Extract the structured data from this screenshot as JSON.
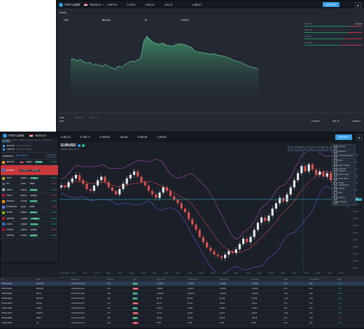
{
  "app": {
    "name": "FXB Capital",
    "account_id": "78234212"
  },
  "back_window": {
    "header_stats": [
      {
        "label": "",
        "value": "4 847.61"
      },
      {
        "label": "",
        "value": "1 013.3"
      },
      {
        "label": "",
        "value": "4 813.47"
      },
      {
        "label": "",
        "value": "244.13"
      },
      {
        "label": "",
        "value": ""
      },
      {
        "label": "",
        "value": "1 883.67"
      }
    ],
    "deposit_label": "DEPOSIT",
    "panel_title": "Equity",
    "summary": [
      {
        "label": "",
        "value": "15%"
      },
      {
        "label": "",
        "value": "$619.86"
      },
      {
        "label": "",
        "value": "75"
      },
      {
        "label": "",
        "value": "76.09%"
      }
    ],
    "side_items": [
      {
        "label": "EURUSD",
        "value": "1,341.23"
      },
      {
        "label": "GBPUSD",
        "value": "-"
      },
      {
        "label": "USDJPY",
        "value": "-"
      },
      {
        "label": "AUDUSD",
        "value": "-"
      }
    ],
    "chart_data": {
      "type": "area",
      "title": "Equity",
      "xlabel": "",
      "ylabel": "",
      "y": [
        60,
        62,
        58,
        61,
        57,
        55,
        56,
        52,
        54,
        51,
        50,
        53,
        49,
        47,
        45,
        50,
        48,
        52,
        55,
        58,
        57,
        60,
        62,
        90,
        98,
        92,
        88,
        86,
        85,
        87,
        84,
        83,
        82,
        84,
        86,
        85,
        84,
        82,
        80,
        74,
        73,
        72,
        71,
        70,
        69,
        70,
        68,
        67,
        66,
        64,
        63,
        60,
        58,
        57,
        55,
        52,
        50,
        48,
        47,
        45
      ],
      "ylim": [
        0,
        110
      ],
      "grid": true
    },
    "footer": {
      "rows": [
        {
          "label": "2024",
          "values": [
            "5,637.24",
            "5,637.24"
          ]
        },
        {
          "label": "2023",
          "values": [
            "",
            ""
          ]
        }
      ],
      "right_values": [
        "+1,281.50",
        "+881.79",
        "+1,883.57"
      ]
    }
  },
  "main_window": {
    "header_stats": [
      {
        "label": "",
        "value": "6 461.21"
      },
      {
        "label": "",
        "value": "6 783.77"
      },
      {
        "label": "",
        "value": "6 408.62"
      },
      {
        "label": "",
        "value": "244.48"
      },
      {
        "label": "",
        "value": "3 048.48"
      },
      {
        "label": "",
        "value": "1 355.81"
      }
    ],
    "deposit_label": "DEPOSIT",
    "symbol": "EURUSD",
    "price_tag": "1.07715",
    "indicator_label": "Bollinger Bands (20, 2)",
    "x_ticks": [
      "14 Aug 2024",
      "15:00",
      "16:00",
      "17:00",
      "18:00",
      "19:00",
      "20:00",
      "21:00",
      "22:00",
      "23:00",
      "00:00",
      "01:00",
      "02:00",
      "03:00",
      "04:00",
      "05:00",
      "06:00",
      "07:00",
      "08:00",
      "09:00",
      "10:00",
      "11:00",
      "12:00",
      "13:00",
      "14:00"
    ],
    "y_ticks": [
      "1.10200",
      "1.09800",
      "1.09400",
      "1.09000",
      "1.08600",
      "1.08200",
      "1.07800",
      "1.07400",
      "1.07000",
      "1.06600",
      "1.06200",
      "1.05800",
      "1.05400",
      "1.05000",
      "1.04600",
      "1.04200",
      "1.03800"
    ],
    "chart_data": {
      "type": "candlestick",
      "title": "EURUSD",
      "xlabel": "",
      "ylabel": "",
      "close": [
        1.085,
        1.084,
        1.087,
        1.089,
        1.091,
        1.088,
        1.086,
        1.083,
        1.082,
        1.085,
        1.088,
        1.09,
        1.087,
        1.084,
        1.082,
        1.08,
        1.083,
        1.086,
        1.089,
        1.091,
        1.093,
        1.09,
        1.087,
        1.085,
        1.082,
        1.08,
        1.078,
        1.081,
        1.084,
        1.082,
        1.079,
        1.077,
        1.075,
        1.072,
        1.07,
        1.066,
        1.063,
        1.06,
        1.056,
        1.053,
        1.05,
        1.048,
        1.046,
        1.045,
        1.044,
        1.046,
        1.048,
        1.047,
        1.049,
        1.052,
        1.055,
        1.053,
        1.056,
        1.06,
        1.064,
        1.067,
        1.065,
        1.068,
        1.072,
        1.075,
        1.078,
        1.076,
        1.08,
        1.084,
        1.088,
        1.092,
        1.096,
        1.093,
        1.097,
        1.094,
        1.091,
        1.093,
        1.09,
        1.092,
        1.088,
        1.086,
        1.083,
        1.08,
        1.082,
        1.078
      ],
      "ylim": [
        1.036,
        1.104
      ],
      "crosshair_price": "1.07715"
    },
    "menu_items": [
      "Symbols",
      "Indicators",
      "Technical analysis",
      "Draw",
      "Alert manager",
      "Economic calendar",
      "Market watch",
      "Trade history",
      "Money management",
      "Cashier",
      "Help",
      "Settings",
      "Language"
    ]
  },
  "front_window": {
    "tabs": [
      "EXCHANGE",
      "CRYPTO",
      "TRADING",
      "STOCKS",
      "INDICES",
      "COMMODITIES"
    ],
    "accounts": [
      {
        "id": "EURUSD",
        "desc": "Euro vs US Dollar"
      },
      {
        "id": "GBPUSD",
        "desc": "Pound vs US Dollar"
      }
    ],
    "panel_title": "MARKETS",
    "filter_label": "ALL SYMBOLS",
    "search_placeholder": "Search",
    "assets": [
      {
        "name": "BITCOIN",
        "tag": "-5%",
        "bid": "59,201",
        "ask": "59,234",
        "chg": "+0.54%",
        "dir": "up",
        "color": "#f7931a"
      },
      {
        "name": "EURUSD",
        "tag": "",
        "bid": "1.07703",
        "ask": "1.07715",
        "chg": "-0.32%",
        "dir": "down",
        "color": "#2f7be0"
      },
      {
        "name": "GOLD",
        "tag": "",
        "bid": "2,381.4",
        "ask": "2,382.1",
        "chg": "+0.68%",
        "dir": "up",
        "color": "#d4a72c"
      },
      {
        "name": "OIL",
        "tag": "",
        "bid": "78.21",
        "ask": "78.25",
        "chg": "-0.11%",
        "dir": "down",
        "color": "#555c66"
      },
      {
        "name": "APPLE",
        "tag": "",
        "bid": "221.30",
        "ask": "221.38",
        "chg": "+1.02%",
        "dir": "up",
        "color": "#9aa3ad"
      },
      {
        "name": "TESLA",
        "tag": "",
        "bid": "207.61",
        "ask": "207.80",
        "chg": "-0.84%",
        "dir": "down",
        "color": "#c8102e"
      },
      {
        "name": "AMAZON",
        "tag": "",
        "bid": "177.59",
        "ask": "177.70",
        "chg": "+0.22%",
        "dir": "up",
        "color": "#ff9900"
      },
      {
        "name": "ETHEREUM",
        "tag": "",
        "bid": "2,612",
        "ask": "2,618",
        "chg": "-1.40%",
        "dir": "down",
        "color": "#627eea"
      },
      {
        "name": "NVIDIA",
        "tag": "",
        "bid": "118.05",
        "ask": "118.14",
        "chg": "+2.11%",
        "dir": "up",
        "color": "#76b900"
      },
      {
        "name": "GBPUSD",
        "tag": "",
        "bid": "1.28461",
        "ask": "1.28478",
        "chg": "+0.05%",
        "dir": "up",
        "color": "#c8102e"
      },
      {
        "name": "US500",
        "tag": "",
        "bid": "5,434.4",
        "ask": "5,435.1",
        "chg": "+0.35%",
        "dir": "up",
        "color": "#2f7be0"
      },
      {
        "name": "USDJPY",
        "tag": "",
        "bid": "146.91",
        "ask": "146.95",
        "chg": "-0.27%",
        "dir": "down",
        "color": "#bc002d"
      },
      {
        "name": "XRPUSD",
        "tag": "",
        "bid": "0.5712",
        "ask": "0.5720",
        "chg": "+0.63%",
        "dir": "up",
        "color": "#23292f"
      }
    ]
  },
  "positions": {
    "tabs": [
      "OPEN POSITIONS",
      "PENDING ORDERS",
      "CLOSED",
      "TRANSFERS"
    ],
    "columns": [
      "ID",
      "Asset",
      "Open time",
      "Amount",
      "Type",
      "Open price",
      "Current price",
      "Take profit",
      "Stop loss",
      "Swap",
      "Commission",
      "Profit"
    ],
    "rows": [
      [
        "78234212001",
        "EURUSD",
        "14.08.2024 13:02",
        "0.01",
        "BUY",
        "1.07703",
        "1.07715",
        "1.08000",
        "1.07000",
        "0.00",
        "0.00",
        "+0.12"
      ],
      [
        "78234212002",
        "GBPUSD",
        "14.08.2024 12:44",
        "0.02",
        "SELL",
        "1.28512",
        "1.28478",
        "1.28000",
        "1.29000",
        "0.00",
        "0.00",
        "+0.68"
      ],
      [
        "78234212003",
        "GOLD",
        "14.08.2024 11:30",
        "0.05",
        "BUY",
        "2,379.80",
        "2,382.10",
        "2,400.00",
        "2,360.00",
        "-0.21",
        "0.00",
        "+11.50"
      ],
      [
        "78234212004",
        "BITCOIN",
        "14.08.2024 10:15",
        "0.01",
        "BUY",
        "59,015",
        "59,234",
        "61,000",
        "57,500",
        "-0.45",
        "0.00",
        "+2.19"
      ],
      [
        "78234212005",
        "APPLE",
        "14.08.2024 09:57",
        "1.00",
        "SELL",
        "222.10",
        "221.38",
        "218.00",
        "225.00",
        "0.00",
        "0.00",
        "+0.72"
      ],
      [
        "78234212006",
        "US500",
        "14.08.2024 09:21",
        "0.10",
        "BUY",
        "5,430.2",
        "5,435.1",
        "5,480.0",
        "5,400.0",
        "0.00",
        "0.00",
        "+0.49"
      ],
      [
        "78234212007",
        "USDJPY",
        "14.08.2024 08:40",
        "0.03",
        "SELL",
        "147.20",
        "146.95",
        "145.00",
        "148.50",
        "-0.08",
        "0.00",
        "+0.51"
      ],
      [
        "78234212008",
        "TESLA",
        "14.08.2024 08:03",
        "0.50",
        "BUY",
        "208.90",
        "207.80",
        "215.00",
        "203.00",
        "0.00",
        "0.00",
        "-0.55"
      ],
      [
        "78234212009",
        "OIL",
        "14.08.2024 07:32",
        "0.20",
        "SELL",
        "78.60",
        "78.25",
        "76.00",
        "80.00",
        "0.00",
        "0.00",
        "+0.70"
      ]
    ]
  }
}
